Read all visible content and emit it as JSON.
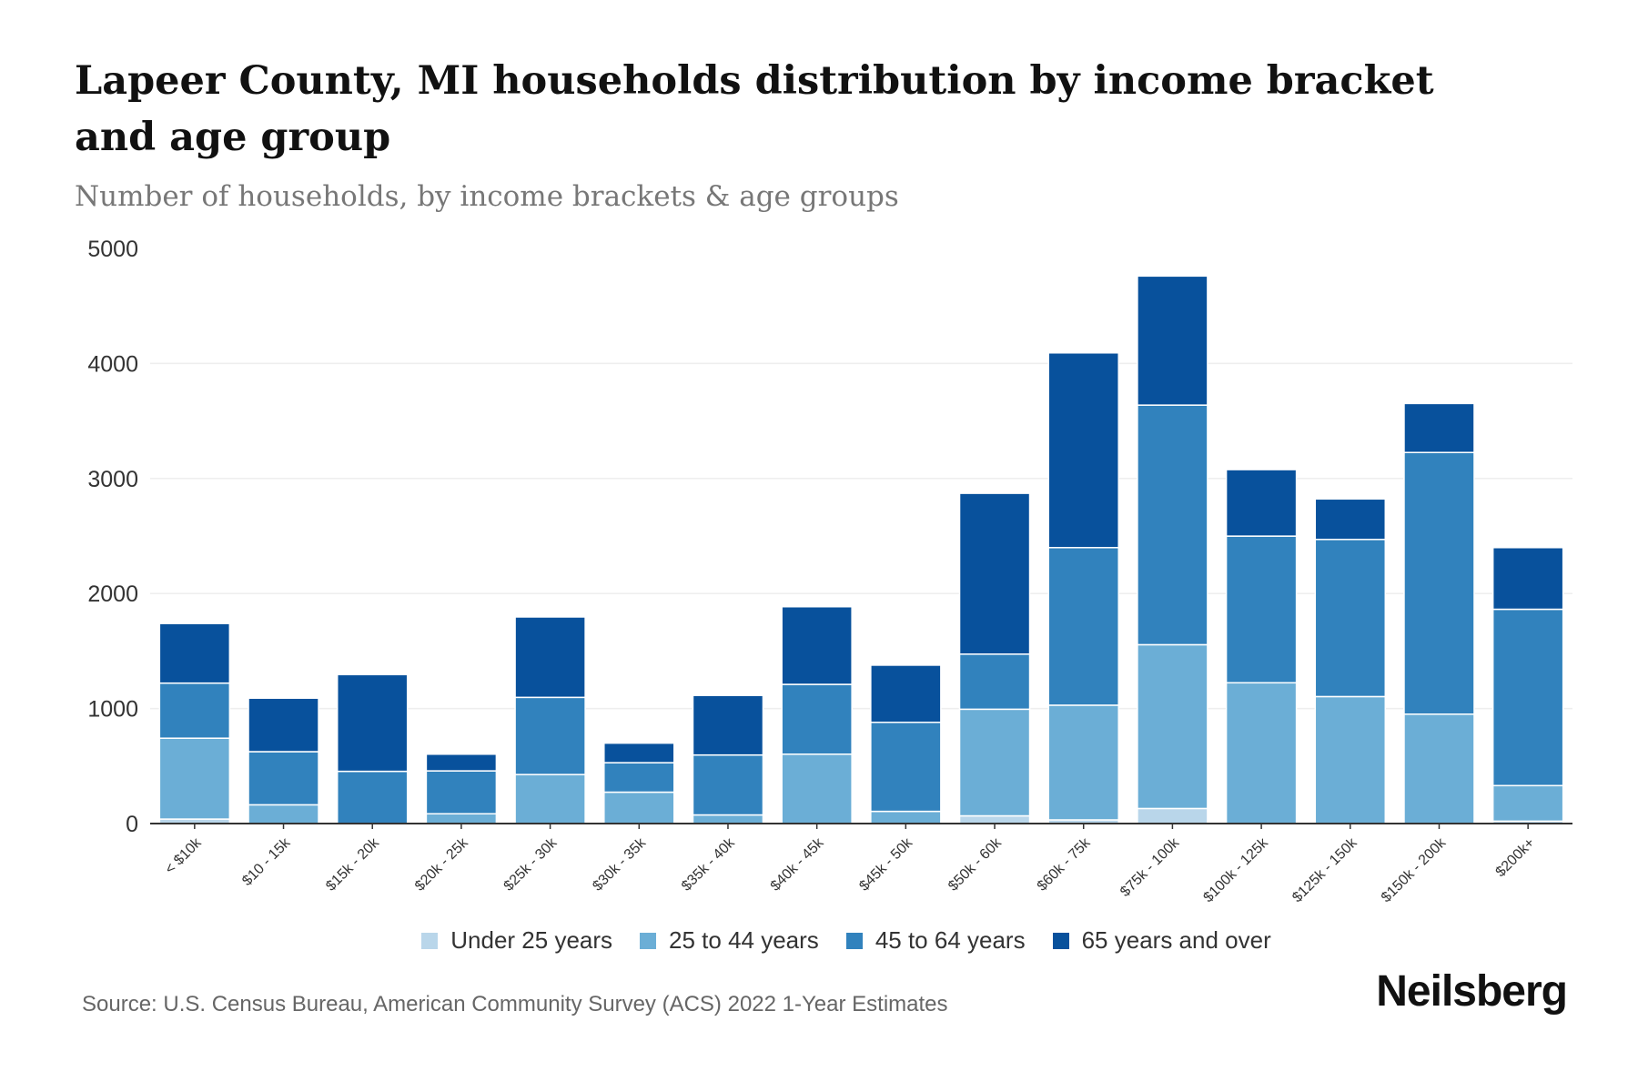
{
  "title": "Lapeer County, MI households distribution by income bracket and age group",
  "subtitle": "Number of households, by income brackets & age groups",
  "source": "Source: U.S. Census Bureau, American Community Survey (ACS) 2022 1-Year Estimates",
  "logo": "Neilsberg",
  "chart_data": {
    "type": "bar",
    "stacked": true,
    "title": "Lapeer County, MI households distribution by income bracket and age group",
    "xlabel": "",
    "ylabel": "Number of households",
    "ylim": [
      0,
      5000
    ],
    "yticks": [
      0,
      1000,
      2000,
      3000,
      4000,
      5000
    ],
    "grid": true,
    "legend_position": "bottom",
    "categories": [
      "< $10k",
      "$10 - 15k",
      "$15k - 20k",
      "$20k - 25k",
      "$25k - 30k",
      "$30k - 35k",
      "$35k - 40k",
      "$40k - 45k",
      "$45k - 50k",
      "$50k - 60k",
      "$60k - 75k",
      "$75k - 100k",
      "$100k - 125k",
      "$125k - 150k",
      "$150k - 200k",
      "$200k+"
    ],
    "series": [
      {
        "name": "Under 25 years",
        "color": "#b9d6ea",
        "values": [
          39,
          0,
          0,
          0,
          0,
          0,
          0,
          0,
          0,
          67,
          32,
          131,
          0,
          0,
          0,
          21
        ]
      },
      {
        "name": "25 to 44 years",
        "color": "#6baed6",
        "values": [
          703,
          163,
          0,
          85,
          426,
          273,
          75,
          603,
          106,
          927,
          997,
          1424,
          1224,
          1104,
          951,
          309
        ]
      },
      {
        "name": "45 to 64 years",
        "color": "#3182bd",
        "values": [
          479,
          462,
          454,
          373,
          671,
          256,
          521,
          607,
          774,
          479,
          1370,
          2083,
          1275,
          1366,
          2275,
          1533
        ]
      },
      {
        "name": "65 years and over",
        "color": "#08519c",
        "values": [
          518,
          465,
          841,
          145,
          699,
          170,
          518,
          675,
          497,
          1398,
          1693,
          1122,
          578,
          352,
          426,
          536
        ]
      }
    ]
  }
}
